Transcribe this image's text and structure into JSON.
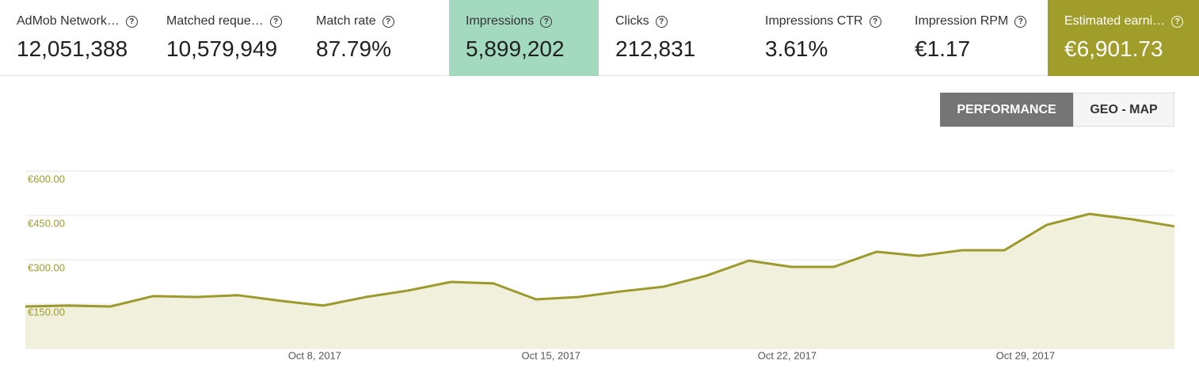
{
  "metrics": [
    {
      "label": "AdMob Network…",
      "value": "12,051,388"
    },
    {
      "label": "Matched reque…",
      "value": "10,579,949"
    },
    {
      "label": "Match rate",
      "value": "87.79%"
    },
    {
      "label": "Impressions",
      "value": "5,899,202"
    },
    {
      "label": "Clicks",
      "value": "212,831"
    },
    {
      "label": "Impressions CTR",
      "value": "3.61%"
    },
    {
      "label": "Impression RPM",
      "value": "€1.17"
    },
    {
      "label": "Estimated earni…",
      "value": "€6,901.73"
    }
  ],
  "buttons": [
    "PERFORMANCE",
    "GEO - MAP"
  ],
  "chart_data": {
    "type": "area",
    "color": "#9c9a2c",
    "fill": "#f0f0dc",
    "grid": true,
    "x": [
      0,
      1,
      2,
      3,
      4,
      5,
      6,
      7,
      8,
      9,
      10,
      11,
      12,
      13,
      14,
      15,
      16,
      17,
      18,
      19,
      20,
      21,
      22,
      23,
      24,
      25,
      26,
      27
    ],
    "values": [
      142,
      145,
      142,
      177,
      174,
      180,
      161,
      145,
      174,
      196,
      225,
      220,
      166,
      174,
      193,
      209,
      246,
      297,
      276,
      276,
      327,
      313,
      332,
      332,
      418,
      455,
      437,
      413
    ],
    "xlim": [
      0,
      27
    ],
    "xticks": [
      {
        "value": 6.8,
        "label": "Oct 8, 2017"
      },
      {
        "value": 12.35,
        "label": "Oct 15, 2017"
      },
      {
        "value": 17.9,
        "label": "Oct 22, 2017"
      },
      {
        "value": 23.5,
        "label": "Oct 29, 2017"
      }
    ],
    "ylim": [
      0,
      600
    ],
    "yticks": [
      {
        "value": 150,
        "label": "€150.00"
      },
      {
        "value": 300,
        "label": "€300.00"
      },
      {
        "value": 450,
        "label": "€450.00"
      },
      {
        "value": 600,
        "label": "€600.00"
      }
    ]
  }
}
